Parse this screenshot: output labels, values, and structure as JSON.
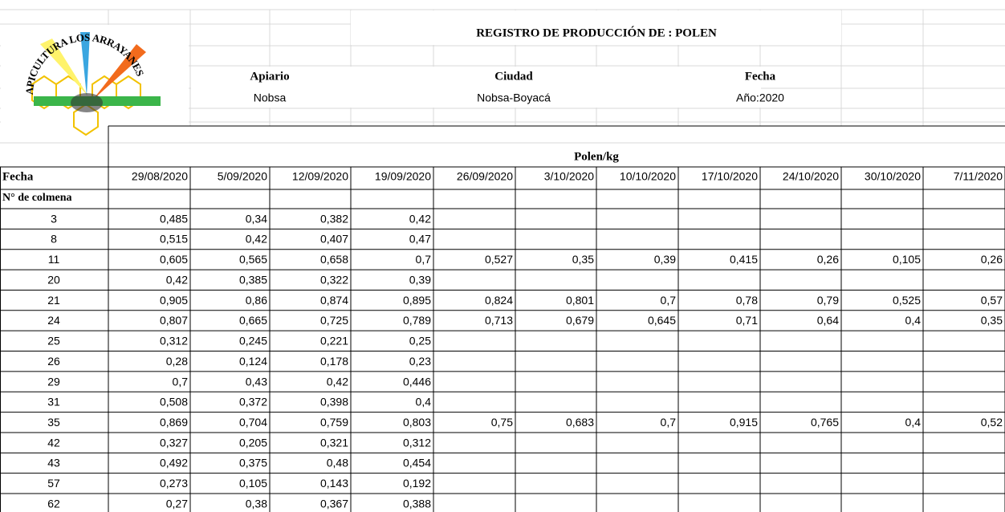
{
  "logo": {
    "text": "APICULTURA LOS ARRAYANES"
  },
  "header": {
    "title": "REGISTRO DE PRODUCCIÓN DE : POLEN",
    "apiario_label": "Apiario",
    "apiario": "Nobsa",
    "ciudad_label": "Ciudad",
    "ciudad": "Nobsa-Boyacá",
    "fecha_label": "Fecha",
    "fecha": "Año:2020"
  },
  "table": {
    "unit": "Polen/kg",
    "date_label": "Fecha",
    "hive_label": "N° de colmena",
    "dates": [
      "29/08/2020",
      "5/09/2020",
      "12/09/2020",
      "19/09/2020",
      "26/09/2020",
      "3/10/2020",
      "10/10/2020",
      "17/10/2020",
      "24/10/2020",
      "30/10/2020",
      "7/11/2020"
    ],
    "rows": [
      {
        "hive": 3,
        "values": [
          "0,485",
          "0,34",
          "0,382",
          "0,42"
        ]
      },
      {
        "hive": 8,
        "values": [
          "0,515",
          "0,42",
          "0,407",
          "0,47"
        ]
      },
      {
        "hive": 11,
        "values": [
          "0,605",
          "0,565",
          "0,658",
          "0,7",
          "0,527",
          "0,35",
          "0,39",
          "0,415",
          "0,26",
          "0,105",
          "0,26"
        ]
      },
      {
        "hive": 20,
        "values": [
          "0,42",
          "0,385",
          "0,322",
          "0,39"
        ]
      },
      {
        "hive": 21,
        "values": [
          "0,905",
          "0,86",
          "0,874",
          "0,895",
          "0,824",
          "0,801",
          "0,7",
          "0,78",
          "0,79",
          "0,525",
          "0,57"
        ]
      },
      {
        "hive": 24,
        "values": [
          "0,807",
          "0,665",
          "0,725",
          "0,789",
          "0,713",
          "0,679",
          "0,645",
          "0,71",
          "0,64",
          "0,4",
          "0,35"
        ]
      },
      {
        "hive": 25,
        "values": [
          "0,312",
          "0,245",
          "0,221",
          "0,25"
        ]
      },
      {
        "hive": 26,
        "values": [
          "0,28",
          "0,124",
          "0,178",
          "0,23"
        ]
      },
      {
        "hive": 29,
        "values": [
          "0,7",
          "0,43",
          "0,42",
          "0,446"
        ]
      },
      {
        "hive": 31,
        "values": [
          "0,508",
          "0,372",
          "0,398",
          "0,4"
        ]
      },
      {
        "hive": 35,
        "values": [
          "0,869",
          "0,704",
          "0,759",
          "0,803",
          "0,75",
          "0,683",
          "0,7",
          "0,915",
          "0,765",
          "0,4",
          "0,52"
        ]
      },
      {
        "hive": 42,
        "values": [
          "0,327",
          "0,205",
          "0,321",
          "0,312"
        ]
      },
      {
        "hive": 43,
        "values": [
          "0,492",
          "0,375",
          "0,48",
          "0,454"
        ]
      },
      {
        "hive": 57,
        "values": [
          "0,273",
          "0,105",
          "0,143",
          "0,192"
        ]
      },
      {
        "hive": 62,
        "values": [
          "0,27",
          "0,38",
          "0,367",
          "0,388"
        ]
      }
    ]
  }
}
